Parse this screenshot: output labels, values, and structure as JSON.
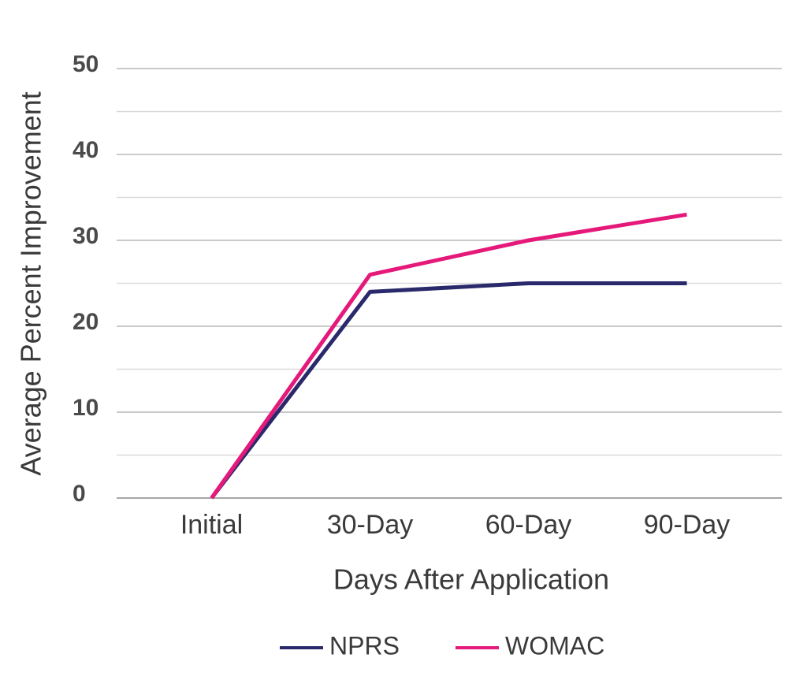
{
  "chart_data": {
    "type": "line",
    "x_label": "Days After Application",
    "y_label": "Average Percent Improvement",
    "categories": [
      "Initial",
      "30-Day",
      "60-Day",
      "90-Day"
    ],
    "series": [
      {
        "name": "NPRS",
        "color": "#29296b",
        "values": [
          0,
          24,
          25,
          25
        ]
      },
      {
        "name": "WOMAC",
        "color": "#e5197a",
        "values": [
          0,
          26,
          30,
          33
        ]
      }
    ],
    "ylim": [
      0,
      50
    ],
    "yticks": [
      0,
      10,
      20,
      30,
      40,
      50
    ],
    "yminor": [
      5,
      15,
      25,
      35,
      45
    ],
    "grid": true,
    "legend": "bottom"
  }
}
